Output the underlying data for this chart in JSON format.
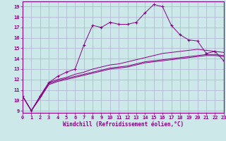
{
  "xlabel": "Windchill (Refroidissement éolien,°C)",
  "ylabel": "",
  "xlim": [
    0,
    23
  ],
  "ylim": [
    8.8,
    19.5
  ],
  "xticks": [
    0,
    1,
    2,
    3,
    4,
    5,
    6,
    7,
    8,
    9,
    10,
    11,
    12,
    13,
    14,
    15,
    16,
    17,
    18,
    19,
    20,
    21,
    22,
    23
  ],
  "yticks": [
    9,
    10,
    11,
    12,
    13,
    14,
    15,
    16,
    17,
    18,
    19
  ],
  "bg_color": "#cce8e8",
  "grid_color": "#b0b0d0",
  "line_color": "#880088",
  "line1_x": [
    0,
    1,
    2,
    3,
    4,
    5,
    6,
    7,
    8,
    9,
    10,
    11,
    12,
    13,
    14,
    15,
    16,
    17,
    18,
    19,
    20,
    21,
    22,
    23
  ],
  "line1_y": [
    10.4,
    9.0,
    10.4,
    11.7,
    12.3,
    12.7,
    13.0,
    15.3,
    17.2,
    17.0,
    17.5,
    17.3,
    17.3,
    17.5,
    18.4,
    19.2,
    19.0,
    17.2,
    16.3,
    15.8,
    15.7,
    14.5,
    14.7,
    13.8
  ],
  "line2_x": [
    0,
    1,
    2,
    3,
    4,
    5,
    6,
    7,
    8,
    9,
    10,
    11,
    12,
    13,
    14,
    15,
    16,
    17,
    18,
    19,
    20,
    21,
    22,
    23
  ],
  "line2_y": [
    10.4,
    9.0,
    10.4,
    11.7,
    12.0,
    12.2,
    12.5,
    12.7,
    13.0,
    13.2,
    13.4,
    13.5,
    13.7,
    13.9,
    14.1,
    14.3,
    14.5,
    14.6,
    14.7,
    14.8,
    14.9,
    14.8,
    14.7,
    14.6
  ],
  "line3_x": [
    0,
    1,
    2,
    3,
    4,
    5,
    6,
    7,
    8,
    9,
    10,
    11,
    12,
    13,
    14,
    15,
    16,
    17,
    18,
    19,
    20,
    21,
    22,
    23
  ],
  "line3_y": [
    10.4,
    9.0,
    10.2,
    11.5,
    11.8,
    12.0,
    12.2,
    12.4,
    12.6,
    12.8,
    13.0,
    13.1,
    13.2,
    13.4,
    13.6,
    13.7,
    13.8,
    13.9,
    14.0,
    14.1,
    14.2,
    14.3,
    14.3,
    14.2
  ],
  "line4_x": [
    0,
    1,
    2,
    3,
    4,
    5,
    6,
    7,
    8,
    9,
    10,
    11,
    12,
    13,
    14,
    15,
    16,
    17,
    18,
    19,
    20,
    21,
    22,
    23
  ],
  "line4_y": [
    10.4,
    9.0,
    10.3,
    11.6,
    11.9,
    12.1,
    12.3,
    12.5,
    12.7,
    12.9,
    13.1,
    13.2,
    13.3,
    13.5,
    13.7,
    13.8,
    13.9,
    14.0,
    14.1,
    14.2,
    14.3,
    14.4,
    14.4,
    14.3
  ]
}
